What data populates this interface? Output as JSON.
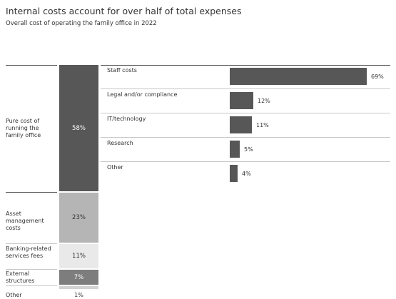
{
  "title": "Internal costs account for over half of total expenses",
  "subtitle": "Overall cost of operating the family office in 2022",
  "chart_data": [
    {
      "type": "bar",
      "orientation": "vertical-stacked",
      "unit": "%",
      "segments": [
        {
          "label": "Pure cost of running the family office",
          "value": 58,
          "value_label": "58%",
          "color": "#575757",
          "text_color": "#ffffff"
        },
        {
          "label": "Asset management costs",
          "value": 23,
          "value_label": "23%",
          "color": "#b5b5b5",
          "text_color": "#333333"
        },
        {
          "label": "Banking-related services fees",
          "value": 11,
          "value_label": "11%",
          "color": "#e9e9e9",
          "text_color": "#333333"
        },
        {
          "label": "External structures",
          "value": 7,
          "value_label": "7%",
          "color": "#7d7d7d",
          "text_color": "#ffffff"
        },
        {
          "label": "Other",
          "value": 1,
          "value_label": "1%",
          "color": "#d2d2d2",
          "text_color": "#333333"
        }
      ]
    },
    {
      "type": "bar",
      "orientation": "horizontal",
      "unit": "%",
      "categories": [
        "Staff costs",
        "Legal and/or compliance",
        "IT/technology",
        "Research",
        "Other"
      ],
      "values": [
        69,
        12,
        11,
        5,
        4
      ],
      "value_labels": [
        "69%",
        "12%",
        "11%",
        "5%",
        "4%"
      ],
      "xlim": [
        0,
        69
      ],
      "bar_color": "#575757"
    }
  ]
}
